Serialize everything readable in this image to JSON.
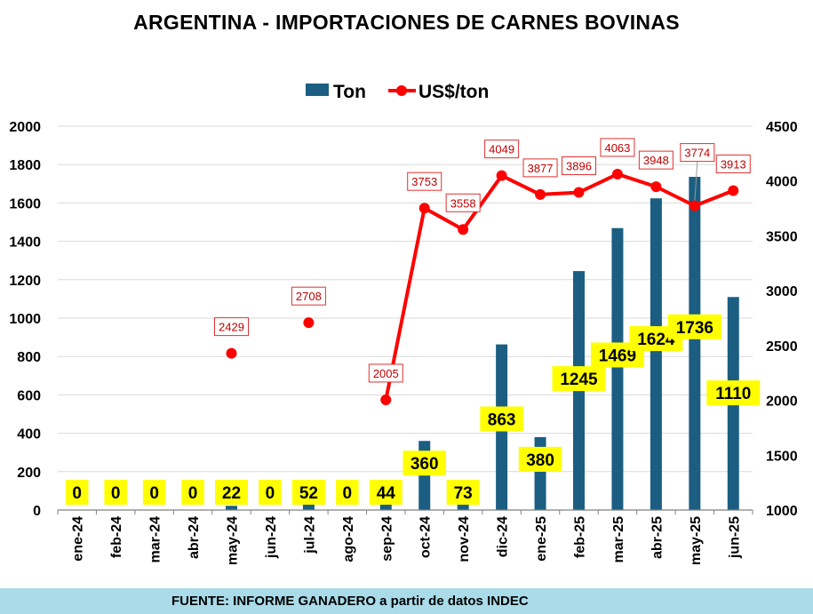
{
  "chart_data": {
    "type": "bar+line",
    "title": "ARGENTINA - IMPORTACIONES DE CARNES BOVINAS",
    "categories": [
      "ene-24",
      "feb-24",
      "mar-24",
      "abr-24",
      "may-24",
      "jun-24",
      "jul-24",
      "ago-24",
      "sep-24",
      "oct-24",
      "nov-24",
      "dic-24",
      "ene-25",
      "feb-25",
      "mar-25",
      "abr-25",
      "may-25",
      "jun-25"
    ],
    "series": [
      {
        "name": "Ton",
        "type": "bar",
        "axis": "left",
        "color": "#1b5e82",
        "values": [
          0,
          0,
          0,
          0,
          22,
          0,
          52,
          0,
          44,
          360,
          73,
          863,
          380,
          1245,
          1469,
          1624,
          1736,
          1110
        ],
        "labels": [
          "0",
          "0",
          "0",
          "0",
          "22",
          "0",
          "52",
          "0",
          "44",
          "360",
          "73",
          "863",
          "380",
          "1245",
          "1469",
          "1624",
          "1736",
          "1110"
        ]
      },
      {
        "name": "US$/ton",
        "type": "line",
        "axis": "right",
        "color": "#ff0000",
        "values": [
          null,
          null,
          null,
          null,
          2429,
          null,
          2708,
          null,
          2005,
          3753,
          3558,
          4049,
          3877,
          3896,
          4063,
          3948,
          3774,
          3913
        ],
        "labels": [
          "",
          "",
          "",
          "",
          "2429",
          "",
          "2708",
          "",
          "2005",
          "3753",
          "3558",
          "4049",
          "3877",
          "3896",
          "4063",
          "3948",
          "3774",
          "3913"
        ]
      }
    ],
    "ylim_left": [
      0,
      2000
    ],
    "yticks_left": [
      "0",
      "200",
      "400",
      "600",
      "800",
      "1000",
      "1200",
      "1400",
      "1600",
      "1800",
      "2000"
    ],
    "ylim_right": [
      1000,
      4500
    ],
    "yticks_right": [
      "1000",
      "1500",
      "2000",
      "2500",
      "3000",
      "3500",
      "4000",
      "4500"
    ],
    "grid": true,
    "legend": "top-center",
    "source": "FUENTE: INFORME GANADERO a partir de datos INDEC"
  }
}
